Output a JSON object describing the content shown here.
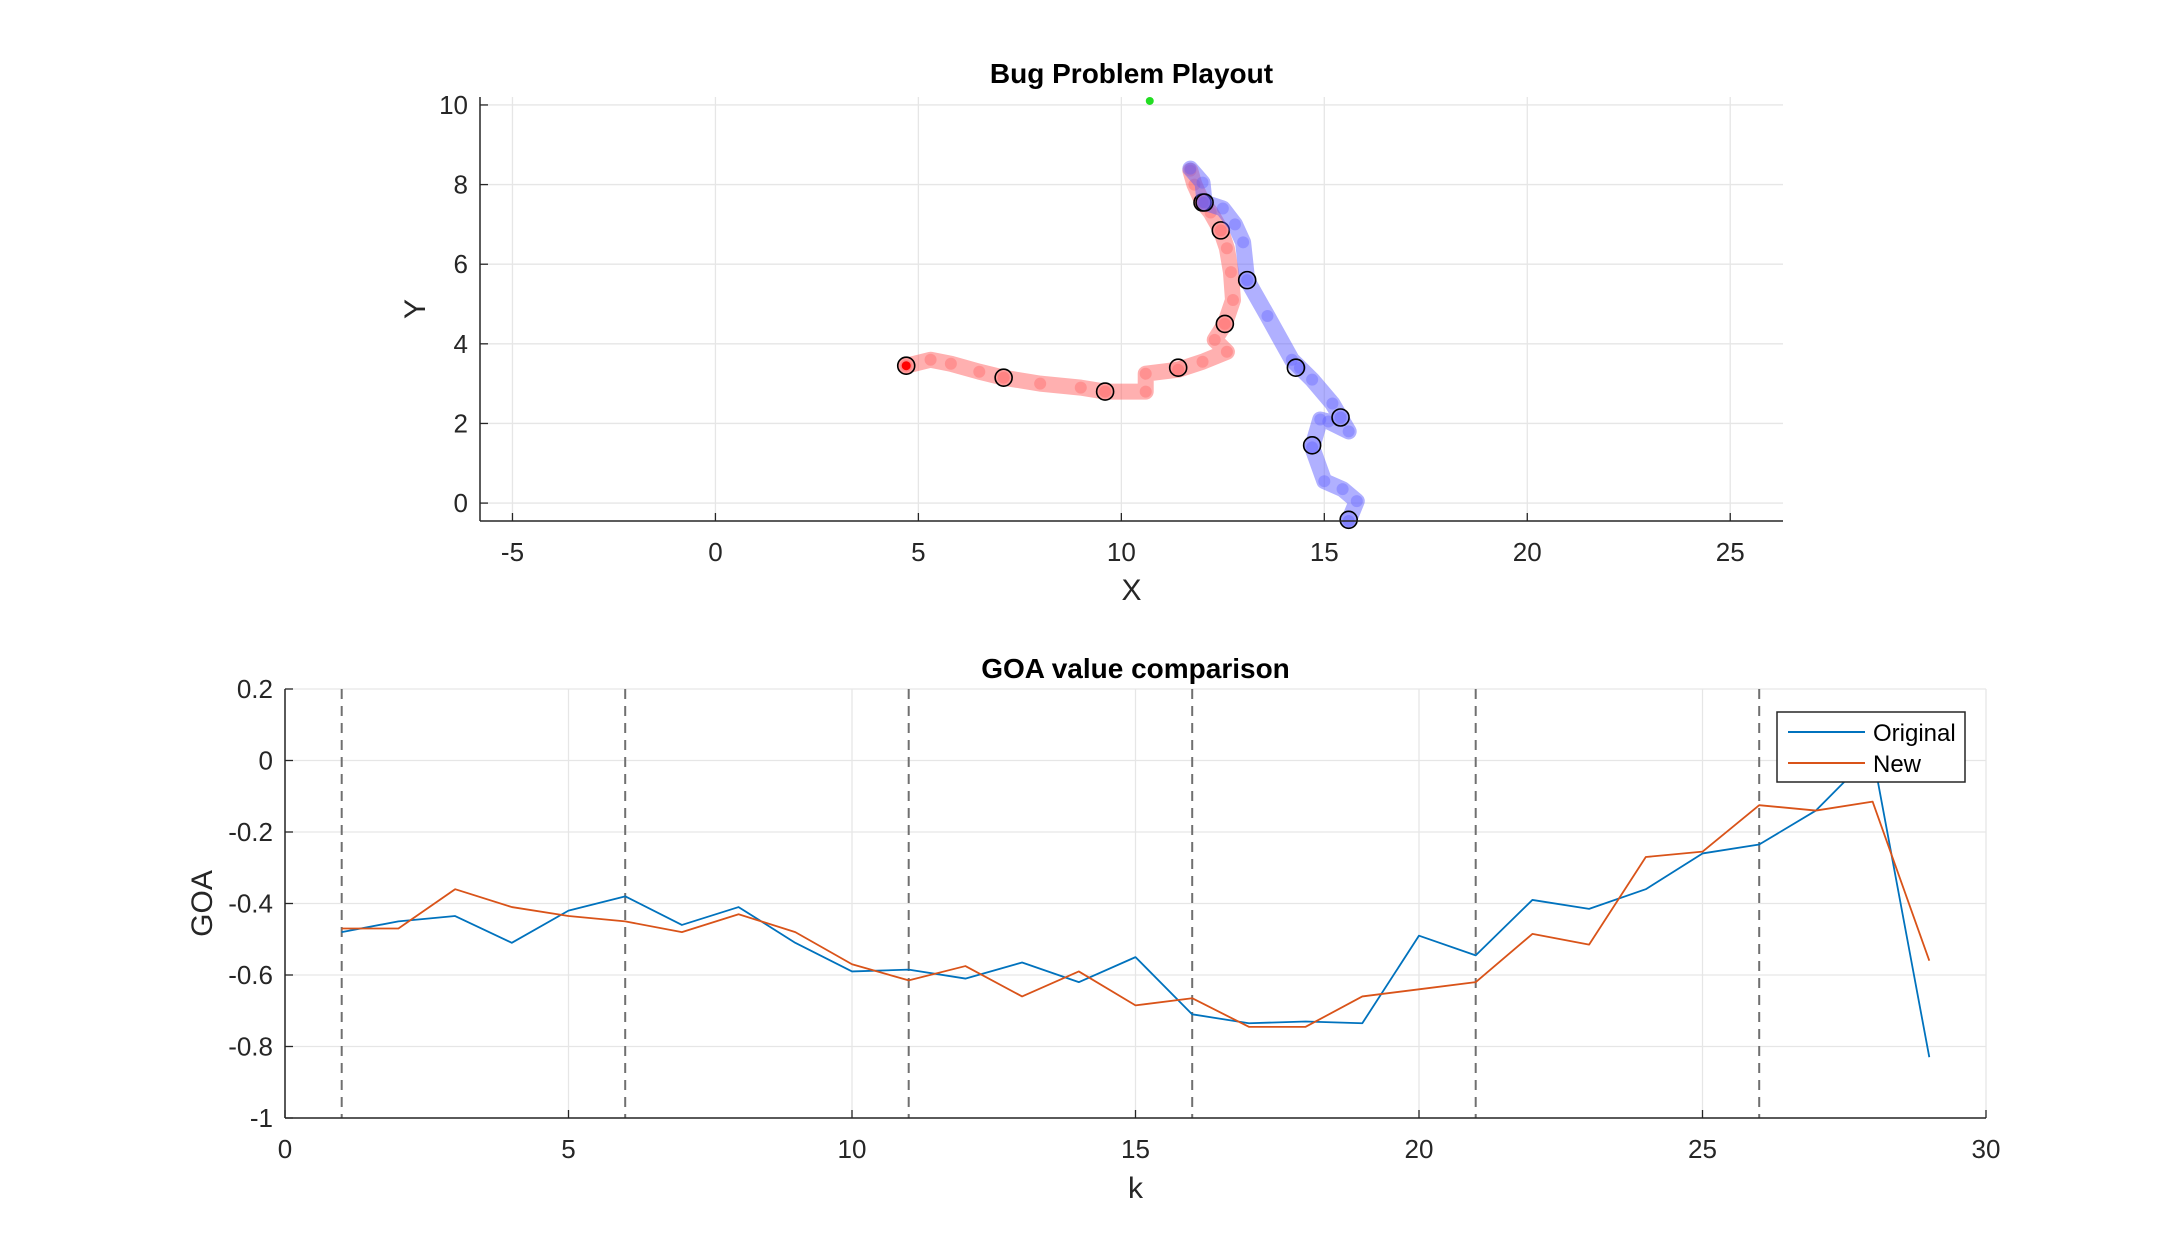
{
  "chart_data": [
    {
      "type": "scatter",
      "title": "Bug Problem Playout",
      "xlabel": "X",
      "ylabel": "Y",
      "xlim": [
        -5.8,
        26.3
      ],
      "ylim": [
        -0.45,
        10.2
      ],
      "xticks": [
        -5,
        0,
        5,
        10,
        15,
        20,
        25
      ],
      "yticks": [
        0,
        2,
        4,
        6,
        8,
        10
      ],
      "grid": true,
      "goal": {
        "x": 10.7,
        "y": 10.1,
        "color": "#22dd22"
      },
      "series": [
        {
          "color": "#ff5a5a",
          "path": [
            [
              4.7,
              3.45
            ],
            [
              5.3,
              3.6
            ],
            [
              5.8,
              3.5
            ],
            [
              6.5,
              3.3
            ],
            [
              7.1,
              3.15
            ],
            [
              8.0,
              3.0
            ],
            [
              9.0,
              2.9
            ],
            [
              9.6,
              2.8
            ],
            [
              10.6,
              2.8
            ],
            [
              10.6,
              3.25
            ],
            [
              11.4,
              3.35
            ],
            [
              12.0,
              3.55
            ],
            [
              12.6,
              3.8
            ],
            [
              12.3,
              4.1
            ],
            [
              12.55,
              4.5
            ],
            [
              12.75,
              5.1
            ],
            [
              12.7,
              5.8
            ],
            [
              12.6,
              6.4
            ],
            [
              12.45,
              6.85
            ],
            [
              12.2,
              7.3
            ],
            [
              12.0,
              7.55
            ],
            [
              11.8,
              8.0
            ],
            [
              11.7,
              8.35
            ]
          ],
          "markers": [
            [
              4.7,
              3.45
            ],
            [
              7.1,
              3.15
            ],
            [
              9.6,
              2.8
            ],
            [
              11.4,
              3.4
            ],
            [
              12.55,
              4.5
            ],
            [
              12.45,
              6.85
            ],
            [
              12.0,
              7.55
            ]
          ]
        },
        {
          "color": "#5a5aff",
          "path": [
            [
              11.7,
              8.4
            ],
            [
              12.0,
              8.05
            ],
            [
              12.05,
              7.55
            ],
            [
              12.5,
              7.4
            ],
            [
              12.8,
              7.0
            ],
            [
              13.0,
              6.55
            ],
            [
              13.1,
              5.6
            ],
            [
              13.6,
              4.7
            ],
            [
              14.2,
              3.6
            ],
            [
              14.4,
              3.4
            ],
            [
              14.7,
              3.1
            ],
            [
              15.2,
              2.5
            ],
            [
              15.4,
              2.15
            ],
            [
              15.6,
              1.8
            ],
            [
              15.1,
              2.05
            ],
            [
              14.9,
              2.1
            ],
            [
              14.7,
              1.4
            ],
            [
              15.0,
              0.55
            ],
            [
              15.45,
              0.35
            ],
            [
              15.8,
              0.05
            ],
            [
              15.6,
              -0.45
            ]
          ],
          "markers": [
            [
              12.05,
              7.55
            ],
            [
              13.1,
              5.6
            ],
            [
              14.3,
              3.4
            ],
            [
              15.4,
              2.15
            ],
            [
              14.7,
              1.45
            ],
            [
              15.6,
              -0.42
            ]
          ]
        }
      ],
      "start_marker": {
        "x": 4.7,
        "y": 3.45,
        "color": "#ff0000"
      }
    },
    {
      "type": "line",
      "title": "GOA value comparison",
      "xlabel": "k",
      "ylabel": "GOA",
      "xlim": [
        0,
        30
      ],
      "ylim": [
        -1,
        0.2
      ],
      "xticks": [
        0,
        5,
        10,
        15,
        20,
        25,
        30
      ],
      "yticks": [
        0.2,
        0,
        -0.2,
        -0.4,
        -0.6,
        -0.8,
        -1
      ],
      "grid": true,
      "vlines": [
        1,
        6,
        11,
        16,
        21,
        26
      ],
      "legend": {
        "position": "top-right"
      },
      "x": [
        1,
        2,
        3,
        4,
        5,
        6,
        7,
        8,
        9,
        10,
        11,
        12,
        13,
        14,
        15,
        16,
        17,
        18,
        19,
        20,
        21,
        22,
        23,
        24,
        25,
        26,
        27,
        28,
        29
      ],
      "series": [
        {
          "name": "Original",
          "color": "#0072bd",
          "values": [
            -0.48,
            -0.45,
            -0.435,
            -0.51,
            -0.42,
            -0.38,
            -0.46,
            -0.41,
            -0.51,
            -0.59,
            -0.585,
            -0.61,
            -0.565,
            -0.62,
            -0.55,
            -0.71,
            -0.735,
            -0.73,
            -0.735,
            -0.49,
            -0.545,
            -0.39,
            -0.415,
            -0.36,
            -0.26,
            -0.235,
            -0.14,
            0.02,
            -0.83
          ]
        },
        {
          "name": "New",
          "color": "#d95319",
          "values": [
            -0.47,
            -0.47,
            -0.36,
            -0.41,
            -0.435,
            -0.45,
            -0.48,
            -0.43,
            -0.48,
            -0.57,
            -0.615,
            -0.575,
            -0.66,
            -0.59,
            -0.685,
            -0.665,
            -0.745,
            -0.745,
            -0.66,
            -0.64,
            -0.62,
            -0.485,
            -0.515,
            -0.27,
            -0.255,
            -0.125,
            -0.14,
            -0.115,
            -0.56
          ]
        }
      ]
    }
  ]
}
